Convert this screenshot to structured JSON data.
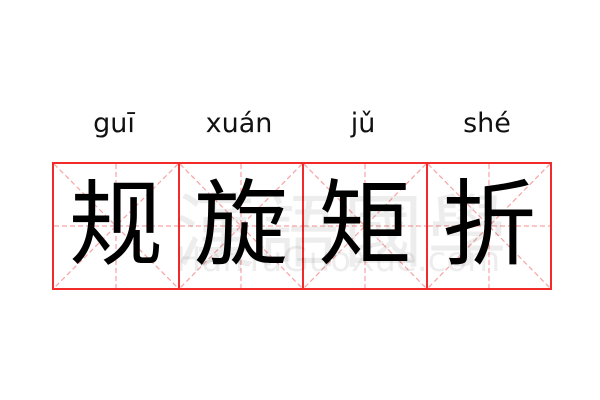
{
  "colors": {
    "border": "#f32a2a",
    "guide": "#f7a3a3",
    "text": "#000000"
  },
  "watermark": {
    "chinese": "漢語國學",
    "latin": "HanYuGuoXue.com"
  },
  "characters": [
    {
      "pinyin": "guī",
      "hanzi": "规"
    },
    {
      "pinyin": "xuán",
      "hanzi": "旋"
    },
    {
      "pinyin": "jǔ",
      "hanzi": "矩"
    },
    {
      "pinyin": "shé",
      "hanzi": "折"
    }
  ]
}
